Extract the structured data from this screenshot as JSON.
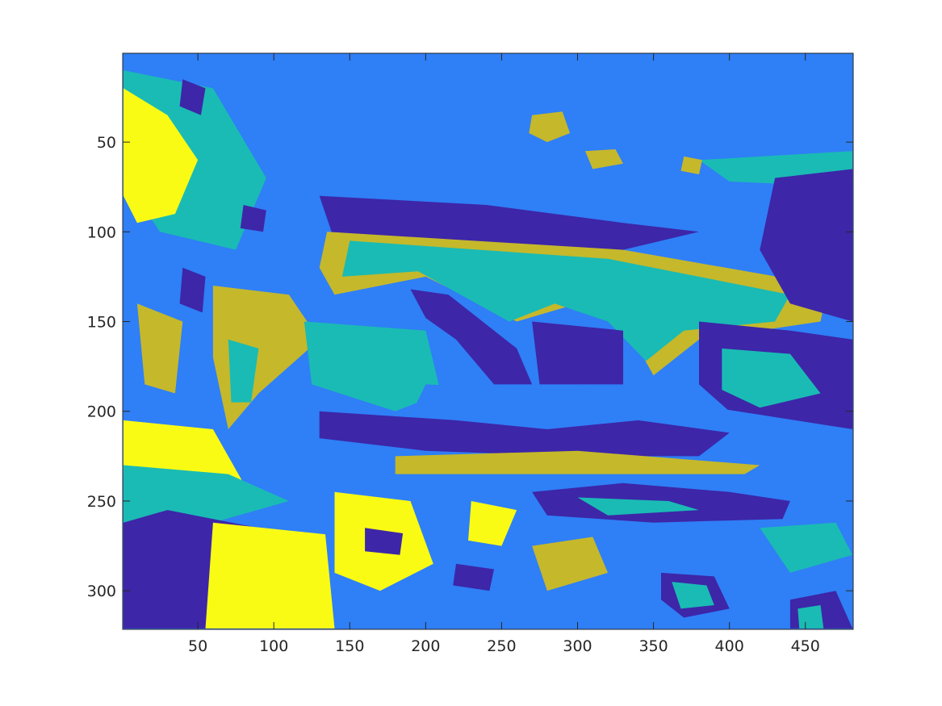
{
  "chart_data": {
    "type": "heatmap",
    "title": "",
    "xlabel": "",
    "ylabel": "",
    "xlim": [
      0.5,
      481.5
    ],
    "ylim": [
      0.5,
      321.5
    ],
    "y_direction": "reversed",
    "grid": false,
    "colorbar": false,
    "x_ticks": [
      50,
      100,
      150,
      200,
      250,
      300,
      350,
      400,
      450
    ],
    "y_ticks": [
      50,
      100,
      150,
      200,
      250,
      300
    ],
    "x_tick_labels": [
      "50",
      "100",
      "150",
      "200",
      "250",
      "300",
      "350",
      "400",
      "450"
    ],
    "y_tick_labels": [
      "50",
      "100",
      "150",
      "200",
      "250",
      "300"
    ],
    "class_colors": [
      "#3d26a8",
      "#2f7ff6",
      "#1abbb4",
      "#c5b82b",
      "#f9fb15"
    ],
    "regions": [
      {
        "class": 1,
        "pts": [
          [
            1,
            1
          ],
          [
            481,
            1
          ],
          [
            481,
            70
          ],
          [
            330,
            105
          ],
          [
            150,
            95
          ],
          [
            100,
            75
          ],
          [
            90,
            1
          ]
        ]
      },
      {
        "class": 2,
        "pts": [
          [
            380,
            60
          ],
          [
            481,
            55
          ],
          [
            481,
            75
          ],
          [
            400,
            72
          ]
        ]
      },
      {
        "class": 3,
        "pts": [
          [
            270,
            35
          ],
          [
            290,
            33
          ],
          [
            295,
            45
          ],
          [
            280,
            50
          ],
          [
            268,
            45
          ]
        ]
      },
      {
        "class": 3,
        "pts": [
          [
            305,
            55
          ],
          [
            325,
            54
          ],
          [
            330,
            62
          ],
          [
            310,
            65
          ]
        ]
      },
      {
        "class": 3,
        "pts": [
          [
            370,
            58
          ],
          [
            382,
            60
          ],
          [
            380,
            68
          ],
          [
            368,
            66
          ]
        ]
      },
      {
        "class": 1,
        "pts": [
          [
            1,
            1
          ],
          [
            95,
            1
          ],
          [
            100,
            60
          ],
          [
            120,
            120
          ],
          [
            60,
            125
          ],
          [
            1,
            120
          ]
        ]
      },
      {
        "class": 2,
        "pts": [
          [
            1,
            10
          ],
          [
            60,
            20
          ],
          [
            95,
            70
          ],
          [
            75,
            110
          ],
          [
            25,
            100
          ],
          [
            1,
            70
          ]
        ]
      },
      {
        "class": 4,
        "pts": [
          [
            1,
            20
          ],
          [
            30,
            35
          ],
          [
            50,
            60
          ],
          [
            35,
            90
          ],
          [
            10,
            95
          ],
          [
            1,
            80
          ]
        ]
      },
      {
        "class": 0,
        "pts": [
          [
            40,
            15
          ],
          [
            55,
            20
          ],
          [
            52,
            35
          ],
          [
            38,
            30
          ]
        ]
      },
      {
        "class": 0,
        "pts": [
          [
            80,
            85
          ],
          [
            95,
            88
          ],
          [
            93,
            100
          ],
          [
            78,
            98
          ]
        ]
      },
      {
        "class": 0,
        "pts": [
          [
            40,
            120
          ],
          [
            55,
            125
          ],
          [
            53,
            145
          ],
          [
            38,
            140
          ]
        ]
      },
      {
        "class": 3,
        "pts": [
          [
            10,
            140
          ],
          [
            40,
            150
          ],
          [
            35,
            190
          ],
          [
            15,
            185
          ]
        ]
      },
      {
        "class": 3,
        "pts": [
          [
            60,
            130
          ],
          [
            110,
            135
          ],
          [
            130,
            160
          ],
          [
            90,
            190
          ],
          [
            70,
            210
          ],
          [
            60,
            170
          ]
        ]
      },
      {
        "class": 2,
        "pts": [
          [
            70,
            160
          ],
          [
            90,
            165
          ],
          [
            85,
            195
          ],
          [
            72,
            195
          ]
        ]
      },
      {
        "class": 4,
        "pts": [
          [
            1,
            205
          ],
          [
            60,
            210
          ],
          [
            80,
            240
          ],
          [
            40,
            245
          ],
          [
            1,
            235
          ]
        ]
      },
      {
        "class": 2,
        "pts": [
          [
            1,
            230
          ],
          [
            70,
            235
          ],
          [
            110,
            250
          ],
          [
            60,
            262
          ],
          [
            1,
            262
          ]
        ]
      },
      {
        "class": 0,
        "pts": [
          [
            1,
            262
          ],
          [
            30,
            255
          ],
          [
            90,
            265
          ],
          [
            70,
            300
          ],
          [
            60,
            321
          ],
          [
            1,
            321
          ]
        ]
      },
      {
        "class": 4,
        "pts": [
          [
            60,
            262
          ],
          [
            150,
            270
          ],
          [
            140,
            321
          ],
          [
            55,
            321
          ]
        ]
      },
      {
        "class": 0,
        "pts": [
          [
            130,
            80
          ],
          [
            240,
            85
          ],
          [
            330,
            95
          ],
          [
            380,
            100
          ],
          [
            330,
            110
          ],
          [
            140,
            105
          ]
        ]
      },
      {
        "class": 3,
        "pts": [
          [
            135,
            100
          ],
          [
            330,
            110
          ],
          [
            465,
            130
          ],
          [
            460,
            150
          ],
          [
            380,
            160
          ],
          [
            350,
            180
          ],
          [
            330,
            150
          ],
          [
            300,
            140
          ],
          [
            260,
            150
          ],
          [
            200,
            125
          ],
          [
            140,
            135
          ],
          [
            130,
            120
          ]
        ]
      },
      {
        "class": 2,
        "pts": [
          [
            150,
            105
          ],
          [
            320,
            115
          ],
          [
            440,
            135
          ],
          [
            430,
            150
          ],
          [
            370,
            155
          ],
          [
            345,
            172
          ],
          [
            320,
            150
          ],
          [
            285,
            140
          ],
          [
            255,
            150
          ],
          [
            195,
            122
          ],
          [
            145,
            125
          ]
        ]
      },
      {
        "class": 0,
        "pts": [
          [
            190,
            132
          ],
          [
            215,
            135
          ],
          [
            260,
            165
          ],
          [
            270,
            185
          ],
          [
            245,
            185
          ],
          [
            220,
            160
          ],
          [
            200,
            148
          ]
        ]
      },
      {
        "class": 0,
        "pts": [
          [
            270,
            150
          ],
          [
            330,
            155
          ],
          [
            330,
            185
          ],
          [
            275,
            185
          ]
        ]
      },
      {
        "class": 0,
        "pts": [
          [
            380,
            150
          ],
          [
            440,
            155
          ],
          [
            481,
            160
          ],
          [
            481,
            210
          ],
          [
            400,
            200
          ],
          [
            380,
            185
          ]
        ]
      },
      {
        "class": 2,
        "pts": [
          [
            395,
            165
          ],
          [
            440,
            168
          ],
          [
            460,
            190
          ],
          [
            420,
            198
          ],
          [
            395,
            188
          ]
        ]
      },
      {
        "class": 0,
        "pts": [
          [
            430,
            70
          ],
          [
            481,
            65
          ],
          [
            481,
            150
          ],
          [
            440,
            140
          ],
          [
            420,
            110
          ]
        ]
      },
      {
        "class": 2,
        "pts": [
          [
            120,
            150
          ],
          [
            200,
            155
          ],
          [
            210,
            190
          ],
          [
            180,
            200
          ],
          [
            125,
            185
          ]
        ]
      },
      {
        "class": 1,
        "pts": [
          [
            200,
            185
          ],
          [
            330,
            190
          ],
          [
            481,
            210
          ],
          [
            481,
            240
          ],
          [
            300,
            235
          ],
          [
            180,
            220
          ]
        ]
      },
      {
        "class": 0,
        "pts": [
          [
            130,
            200
          ],
          [
            220,
            205
          ],
          [
            280,
            210
          ],
          [
            340,
            205
          ],
          [
            400,
            212
          ],
          [
            380,
            225
          ],
          [
            300,
            225
          ],
          [
            200,
            222
          ],
          [
            130,
            215
          ]
        ]
      },
      {
        "class": 3,
        "pts": [
          [
            180,
            225
          ],
          [
            300,
            222
          ],
          [
            420,
            230
          ],
          [
            400,
            240
          ],
          [
            250,
            240
          ],
          [
            180,
            235
          ]
        ]
      },
      {
        "class": 1,
        "pts": [
          [
            130,
            235
          ],
          [
            481,
            235
          ],
          [
            481,
            321
          ],
          [
            140,
            321
          ]
        ]
      },
      {
        "class": 0,
        "pts": [
          [
            270,
            245
          ],
          [
            330,
            240
          ],
          [
            400,
            245
          ],
          [
            440,
            250
          ],
          [
            435,
            260
          ],
          [
            350,
            262
          ],
          [
            280,
            258
          ]
        ]
      },
      {
        "class": 2,
        "pts": [
          [
            300,
            248
          ],
          [
            360,
            250
          ],
          [
            380,
            255
          ],
          [
            320,
            258
          ]
        ]
      },
      {
        "class": 0,
        "pts": [
          [
            355,
            290
          ],
          [
            390,
            292
          ],
          [
            400,
            310
          ],
          [
            370,
            315
          ],
          [
            355,
            305
          ]
        ]
      },
      {
        "class": 2,
        "pts": [
          [
            362,
            295
          ],
          [
            385,
            297
          ],
          [
            390,
            308
          ],
          [
            368,
            310
          ]
        ]
      },
      {
        "class": 4,
        "pts": [
          [
            140,
            245
          ],
          [
            190,
            250
          ],
          [
            205,
            285
          ],
          [
            170,
            300
          ],
          [
            140,
            290
          ]
        ]
      },
      {
        "class": 4,
        "pts": [
          [
            230,
            250
          ],
          [
            260,
            255
          ],
          [
            250,
            275
          ],
          [
            228,
            272
          ]
        ]
      },
      {
        "class": 0,
        "pts": [
          [
            160,
            265
          ],
          [
            185,
            268
          ],
          [
            183,
            280
          ],
          [
            160,
            278
          ]
        ]
      },
      {
        "class": 0,
        "pts": [
          [
            220,
            285
          ],
          [
            245,
            288
          ],
          [
            242,
            300
          ],
          [
            218,
            297
          ]
        ]
      },
      {
        "class": 3,
        "pts": [
          [
            270,
            275
          ],
          [
            310,
            270
          ],
          [
            320,
            290
          ],
          [
            280,
            300
          ]
        ]
      },
      {
        "class": 2,
        "pts": [
          [
            420,
            265
          ],
          [
            470,
            262
          ],
          [
            481,
            280
          ],
          [
            440,
            290
          ]
        ]
      },
      {
        "class": 0,
        "pts": [
          [
            440,
            305
          ],
          [
            470,
            300
          ],
          [
            481,
            321
          ],
          [
            440,
            321
          ]
        ]
      },
      {
        "class": 2,
        "pts": [
          [
            445,
            310
          ],
          [
            460,
            308
          ],
          [
            462,
            321
          ],
          [
            446,
            321
          ]
        ]
      }
    ]
  }
}
